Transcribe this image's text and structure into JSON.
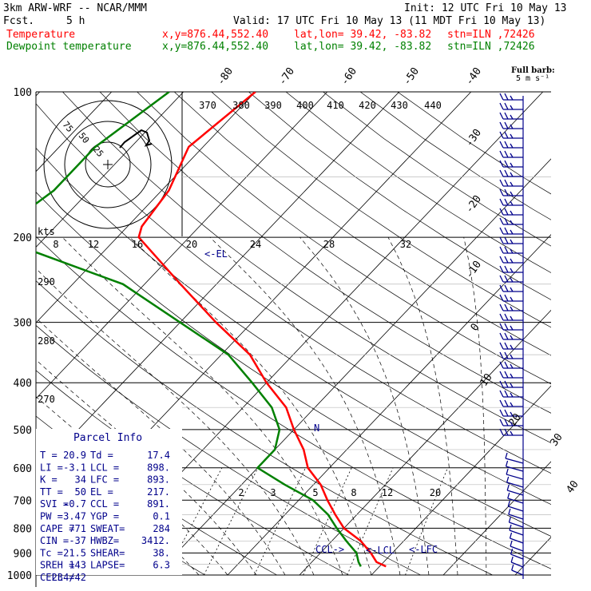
{
  "header": {
    "title": "3km ARW-WRF -- NCAR/MMM",
    "fcst_label": "Fcst.",
    "fcst_value": "5 h",
    "init": "Init: 12 UTC Fri 10 May 13",
    "valid": "Valid: 17 UTC Fri 10 May 13 (11 MDT Fri 10 May 13)",
    "temp_label": "Temperature",
    "dew_label": "Dewpoint temperature",
    "xy": "x,y=876.44,552.40",
    "latlon": "lat,lon= 39.42, -83.82",
    "stn": "stn=ILN ,72426",
    "temp_color": "#ff0000",
    "dew_color": "#008000"
  },
  "barb_legend": {
    "line1": "Full barb:",
    "line2": "5 m s⁻¹"
  },
  "chart_data": {
    "type": "line",
    "chart_kind": "skew-T log-P diagram",
    "pressure_levels": [
      100,
      200,
      300,
      400,
      500,
      600,
      700,
      800,
      900,
      1000
    ],
    "temp_ticks": [
      "-80",
      "-70",
      "-60",
      "-50",
      "-40",
      "-30",
      "-20",
      "-10",
      "0",
      "10",
      "20",
      "30",
      "40"
    ],
    "theta_ticks": [
      "370",
      "380",
      "390",
      "400",
      "410",
      "420",
      "430",
      "440"
    ],
    "hodograph_speed_ticks": [
      "8",
      "12",
      "16",
      "20",
      "24",
      "28",
      "32"
    ],
    "hodograph_units": "kts",
    "hodograph_ring_labels": [
      "75",
      "50",
      "25"
    ],
    "mixing_ratio_ticks": [
      "2",
      "3",
      "5",
      "8",
      "12",
      "20"
    ],
    "height_ticks": [
      "290",
      "280",
      "270"
    ],
    "series": [
      {
        "name": "Temperature",
        "color": "#ff0000",
        "points": [
          [
            100,
            -60
          ],
          [
            130,
            -62
          ],
          [
            160,
            -59
          ],
          [
            190,
            -58
          ],
          [
            200,
            -57
          ],
          [
            250,
            -45
          ],
          [
            300,
            -35
          ],
          [
            350,
            -26
          ],
          [
            400,
            -20
          ],
          [
            450,
            -14
          ],
          [
            500,
            -10
          ],
          [
            550,
            -6
          ],
          [
            600,
            -3
          ],
          [
            650,
            1
          ],
          [
            700,
            4
          ],
          [
            750,
            7
          ],
          [
            800,
            10
          ],
          [
            850,
            14
          ],
          [
            900,
            17
          ],
          [
            940,
            19
          ],
          [
            960,
            20.9
          ]
        ]
      },
      {
        "name": "Dewpoint temperature",
        "color": "#008000",
        "points": [
          [
            100,
            -72
          ],
          [
            130,
            -75
          ],
          [
            160,
            -75
          ],
          [
            190,
            -77
          ],
          [
            200,
            -77
          ],
          [
            250,
            -53
          ],
          [
            300,
            -40
          ],
          [
            350,
            -29
          ],
          [
            400,
            -22
          ],
          [
            450,
            -16
          ],
          [
            500,
            -12
          ],
          [
            550,
            -10
          ],
          [
            600,
            -10
          ],
          [
            650,
            -4
          ],
          [
            700,
            2
          ],
          [
            750,
            6
          ],
          [
            800,
            9
          ],
          [
            850,
            12
          ],
          [
            900,
            15
          ],
          [
            940,
            16.5
          ],
          [
            960,
            17.4
          ]
        ]
      }
    ],
    "annotations": [
      {
        "text": "<-EL",
        "p": 217
      },
      {
        "text": "CCL->",
        "p": 891
      },
      {
        "text": "<-LCL",
        "p": 898
      },
      {
        "text": "<-LFC",
        "p": 893
      },
      {
        "text": "N",
        "p": 500
      }
    ]
  },
  "parcel_info": {
    "title": "Parcel Info",
    "rows": [
      [
        "T  =",
        "20.9",
        "Td =",
        "17.4"
      ],
      [
        "LI =",
        "-3.1",
        "LCL =",
        "898."
      ],
      [
        "K  =",
        "34",
        "LFC =",
        "893."
      ],
      [
        "TT =",
        "50",
        "EL =",
        "217."
      ],
      [
        "SVI =",
        "-0.7",
        "CCL =",
        "891."
      ],
      [
        "PW =",
        "3.47",
        "YGP =",
        "0.1"
      ],
      [
        "CAPE =",
        "771",
        "SWEAT=",
        "284"
      ],
      [
        "CIN =",
        "-37",
        "HWBZ=",
        "3412."
      ],
      [
        "Tc =",
        "21.5",
        "SHEAR=",
        "38."
      ],
      [
        "SREH =",
        "143",
        "LAPSE=",
        "6.3"
      ],
      [
        "CELL =",
        "234/42",
        "",
        ""
      ]
    ]
  }
}
